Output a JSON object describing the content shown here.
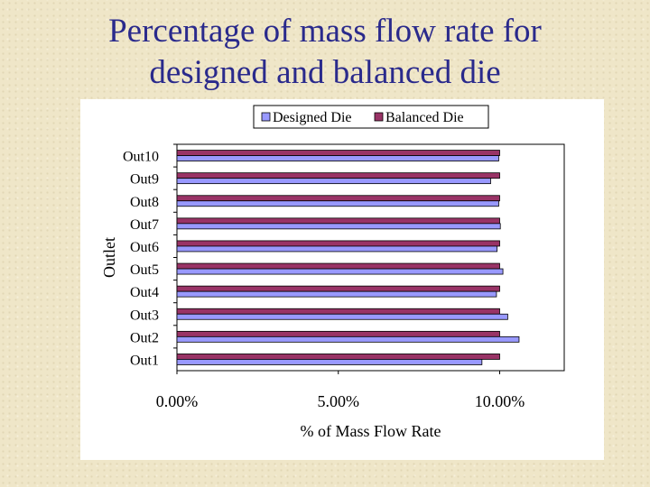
{
  "slide": {
    "title_line1": "Percentage of mass flow rate for",
    "title_line2": "designed and balanced die"
  },
  "colors": {
    "title": "#2a2a8c",
    "designed": "#9999ff",
    "balanced": "#993366",
    "background": "#efe6c8"
  },
  "chart_data": {
    "type": "bar",
    "orientation": "horizontal",
    "categories": [
      "Out1",
      "Out2",
      "Out3",
      "Out4",
      "Out5",
      "Out6",
      "Out7",
      "Out8",
      "Out9",
      "Out10"
    ],
    "series": [
      {
        "name": "Designed Die",
        "values": [
          9.45,
          10.6,
          10.25,
          9.9,
          10.1,
          9.92,
          10.02,
          9.97,
          9.72,
          9.97
        ]
      },
      {
        "name": "Balanced Die",
        "values": [
          10.0,
          10.0,
          10.0,
          10.0,
          10.0,
          10.0,
          10.0,
          10.0,
          10.0,
          10.0
        ]
      }
    ],
    "xlabel": "% of Mass Flow Rate",
    "ylabel": "Outlet",
    "xlim": [
      0,
      12
    ],
    "xticks": [
      0,
      5,
      10
    ],
    "xtick_labels": [
      "0.00%",
      "5.00%",
      "10.00%"
    ],
    "legend_position": "top-center",
    "grid": false
  }
}
